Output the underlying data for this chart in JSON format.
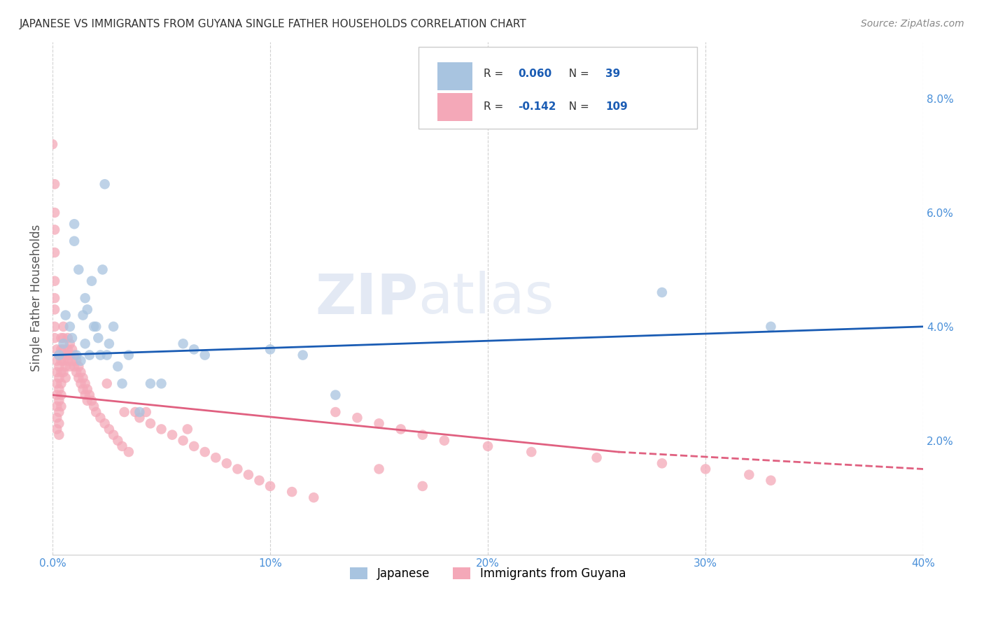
{
  "title": "JAPANESE VS IMMIGRANTS FROM GUYANA SINGLE FATHER HOUSEHOLDS CORRELATION CHART",
  "source": "Source: ZipAtlas.com",
  "ylabel": "Single Father Households",
  "watermark": "ZIPatlas",
  "legend_label_1": "Japanese",
  "legend_label_2": "Immigrants from Guyana",
  "r1": 0.06,
  "n1": 39,
  "r2": -0.142,
  "n2": 109,
  "color1": "#a8c4e0",
  "color2": "#f4a8b8",
  "line_color1": "#1a5cb4",
  "line_color2": "#e06080",
  "background": "#ffffff",
  "grid_color": "#cccccc",
  "xlim": [
    0.0,
    0.4
  ],
  "ylim": [
    0.0,
    0.09
  ],
  "xticks": [
    0.0,
    0.1,
    0.2,
    0.3,
    0.4
  ],
  "yticks_right": [
    0.02,
    0.04,
    0.06,
    0.08
  ],
  "japanese_x": [
    0.003,
    0.005,
    0.006,
    0.008,
    0.009,
    0.01,
    0.01,
    0.011,
    0.012,
    0.013,
    0.014,
    0.015,
    0.015,
    0.016,
    0.017,
    0.018,
    0.019,
    0.02,
    0.021,
    0.022,
    0.023,
    0.024,
    0.025,
    0.026,
    0.028,
    0.03,
    0.032,
    0.035,
    0.04,
    0.045,
    0.05,
    0.06,
    0.065,
    0.07,
    0.1,
    0.115,
    0.13,
    0.28,
    0.33
  ],
  "japanese_y": [
    0.035,
    0.037,
    0.042,
    0.04,
    0.038,
    0.055,
    0.058,
    0.035,
    0.05,
    0.034,
    0.042,
    0.045,
    0.037,
    0.043,
    0.035,
    0.048,
    0.04,
    0.04,
    0.038,
    0.035,
    0.05,
    0.065,
    0.035,
    0.037,
    0.04,
    0.033,
    0.03,
    0.035,
    0.025,
    0.03,
    0.03,
    0.037,
    0.036,
    0.035,
    0.036,
    0.035,
    0.028,
    0.046,
    0.04
  ],
  "guyana_x": [
    0.0,
    0.001,
    0.001,
    0.001,
    0.001,
    0.001,
    0.001,
    0.001,
    0.001,
    0.001,
    0.002,
    0.002,
    0.002,
    0.002,
    0.002,
    0.002,
    0.002,
    0.002,
    0.003,
    0.003,
    0.003,
    0.003,
    0.003,
    0.003,
    0.003,
    0.003,
    0.004,
    0.004,
    0.004,
    0.004,
    0.004,
    0.004,
    0.004,
    0.005,
    0.005,
    0.005,
    0.005,
    0.005,
    0.006,
    0.006,
    0.006,
    0.007,
    0.007,
    0.007,
    0.008,
    0.008,
    0.008,
    0.009,
    0.009,
    0.01,
    0.01,
    0.011,
    0.011,
    0.012,
    0.012,
    0.013,
    0.013,
    0.014,
    0.014,
    0.015,
    0.015,
    0.016,
    0.016,
    0.017,
    0.018,
    0.019,
    0.02,
    0.022,
    0.024,
    0.026,
    0.028,
    0.03,
    0.032,
    0.035,
    0.038,
    0.04,
    0.045,
    0.05,
    0.055,
    0.06,
    0.065,
    0.07,
    0.075,
    0.08,
    0.085,
    0.09,
    0.095,
    0.1,
    0.11,
    0.12,
    0.13,
    0.14,
    0.15,
    0.16,
    0.17,
    0.18,
    0.2,
    0.22,
    0.25,
    0.28,
    0.3,
    0.32,
    0.33,
    0.025,
    0.033,
    0.043,
    0.062,
    0.15,
    0.17
  ],
  "guyana_y": [
    0.072,
    0.065,
    0.06,
    0.057,
    0.053,
    0.048,
    0.045,
    0.043,
    0.04,
    0.038,
    0.036,
    0.034,
    0.032,
    0.03,
    0.028,
    0.026,
    0.024,
    0.022,
    0.035,
    0.033,
    0.031,
    0.029,
    0.027,
    0.025,
    0.023,
    0.021,
    0.038,
    0.036,
    0.034,
    0.032,
    0.03,
    0.028,
    0.026,
    0.04,
    0.038,
    0.036,
    0.034,
    0.032,
    0.035,
    0.033,
    0.031,
    0.038,
    0.036,
    0.034,
    0.037,
    0.035,
    0.033,
    0.036,
    0.034,
    0.035,
    0.033,
    0.034,
    0.032,
    0.033,
    0.031,
    0.032,
    0.03,
    0.031,
    0.029,
    0.03,
    0.028,
    0.029,
    0.027,
    0.028,
    0.027,
    0.026,
    0.025,
    0.024,
    0.023,
    0.022,
    0.021,
    0.02,
    0.019,
    0.018,
    0.025,
    0.024,
    0.023,
    0.022,
    0.021,
    0.02,
    0.019,
    0.018,
    0.017,
    0.016,
    0.015,
    0.014,
    0.013,
    0.012,
    0.011,
    0.01,
    0.025,
    0.024,
    0.023,
    0.022,
    0.021,
    0.02,
    0.019,
    0.018,
    0.017,
    0.016,
    0.015,
    0.014,
    0.013,
    0.03,
    0.025,
    0.025,
    0.022,
    0.015,
    0.012
  ]
}
